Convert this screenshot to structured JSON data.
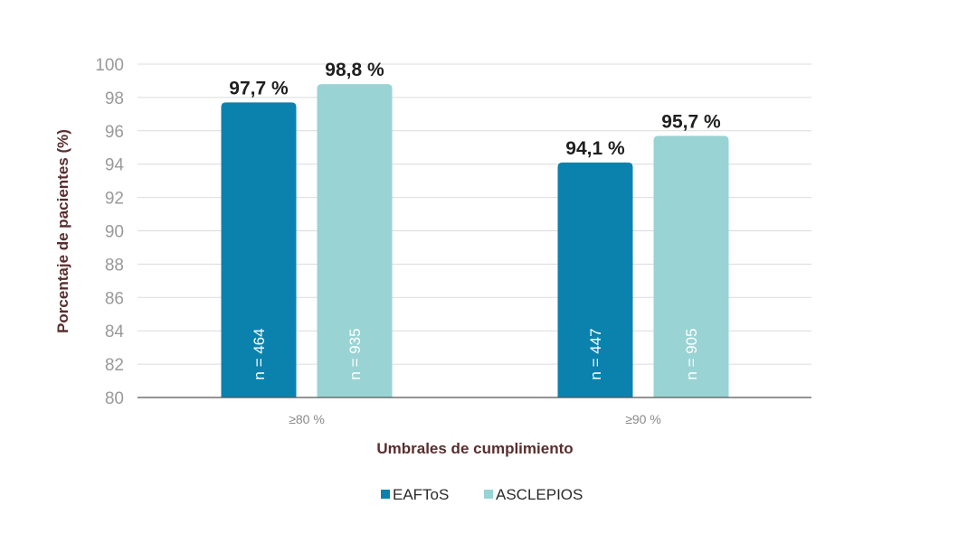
{
  "chart_data": {
    "type": "bar",
    "title": "",
    "xlabel": "Umbrales de cumplimiento",
    "ylabel": "Porcentaje de pacientes (%)",
    "ylim": [
      80,
      100
    ],
    "yticks": [
      80,
      82,
      84,
      86,
      88,
      90,
      92,
      94,
      96,
      98,
      100
    ],
    "categories": [
      "≥80 %",
      "≥90 %"
    ],
    "grid": true,
    "legend_position": "bottom-center",
    "series": [
      {
        "name": "EAFToS",
        "color": "#0a82ad",
        "values": [
          97.7,
          94.1
        ],
        "value_labels": [
          "97,7 %",
          "94,1 %"
        ],
        "n_labels": [
          "n = 464",
          "n = 447"
        ]
      },
      {
        "name": "ASCLEPIOS",
        "color": "#9ad3d4",
        "values": [
          98.8,
          95.7
        ],
        "value_labels": [
          "98,8 %",
          "95,7 %"
        ],
        "n_labels": [
          "n = 935",
          "n = 905"
        ]
      }
    ]
  }
}
